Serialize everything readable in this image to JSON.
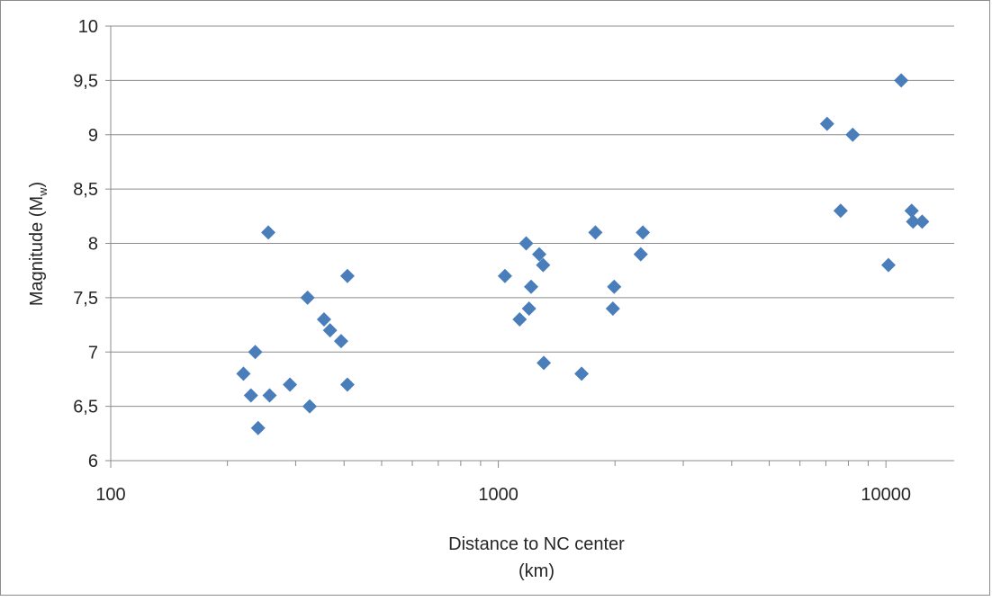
{
  "chart_data": {
    "type": "scatter",
    "title": "",
    "xlabel_line1": "Distance to NC center",
    "xlabel_line2": "(km)",
    "ylabel_main": "Magnitude (M",
    "ylabel_sub": "w",
    "ylabel_close": ")",
    "x_scale": "log",
    "xlim": [
      100,
      15000
    ],
    "ylim": [
      6,
      10
    ],
    "x_ticks": [
      {
        "value": 100,
        "label": "100"
      },
      {
        "value": 1000,
        "label": "1000"
      },
      {
        "value": 10000,
        "label": "10000"
      }
    ],
    "y_ticks": [
      {
        "value": 6,
        "label": "6"
      },
      {
        "value": 6.5,
        "label": "6,5"
      },
      {
        "value": 7,
        "label": "7"
      },
      {
        "value": 7.5,
        "label": "7,5"
      },
      {
        "value": 8,
        "label": "8"
      },
      {
        "value": 8.5,
        "label": "8,5"
      },
      {
        "value": 9,
        "label": "9"
      },
      {
        "value": 9.5,
        "label": "9,5"
      },
      {
        "value": 10,
        "label": "10"
      }
    ],
    "grid": "horizontal",
    "legend": "none",
    "marker": "diamond",
    "marker_color": "#4a7ebb",
    "points": [
      {
        "x": 220,
        "y": 6.8
      },
      {
        "x": 230,
        "y": 6.6
      },
      {
        "x": 236,
        "y": 7.0
      },
      {
        "x": 240,
        "y": 6.3
      },
      {
        "x": 257,
        "y": 6.6
      },
      {
        "x": 255,
        "y": 8.1
      },
      {
        "x": 290,
        "y": 6.7
      },
      {
        "x": 322,
        "y": 7.5
      },
      {
        "x": 326,
        "y": 6.5
      },
      {
        "x": 355,
        "y": 7.3
      },
      {
        "x": 368,
        "y": 7.2
      },
      {
        "x": 393,
        "y": 7.1
      },
      {
        "x": 408,
        "y": 7.7
      },
      {
        "x": 408,
        "y": 6.7
      },
      {
        "x": 1040,
        "y": 7.7
      },
      {
        "x": 1135,
        "y": 7.3
      },
      {
        "x": 1180,
        "y": 8.0
      },
      {
        "x": 1200,
        "y": 7.4
      },
      {
        "x": 1215,
        "y": 7.6
      },
      {
        "x": 1275,
        "y": 7.9
      },
      {
        "x": 1305,
        "y": 7.8
      },
      {
        "x": 1310,
        "y": 6.9
      },
      {
        "x": 1640,
        "y": 6.8
      },
      {
        "x": 1780,
        "y": 8.1
      },
      {
        "x": 1975,
        "y": 7.4
      },
      {
        "x": 1990,
        "y": 7.6
      },
      {
        "x": 2330,
        "y": 7.9
      },
      {
        "x": 2360,
        "y": 8.1
      },
      {
        "x": 7050,
        "y": 9.1
      },
      {
        "x": 7640,
        "y": 8.3
      },
      {
        "x": 8210,
        "y": 9.0
      },
      {
        "x": 10150,
        "y": 7.8
      },
      {
        "x": 10950,
        "y": 9.5
      },
      {
        "x": 11650,
        "y": 8.3
      },
      {
        "x": 11750,
        "y": 8.2
      },
      {
        "x": 12400,
        "y": 8.2
      }
    ]
  }
}
